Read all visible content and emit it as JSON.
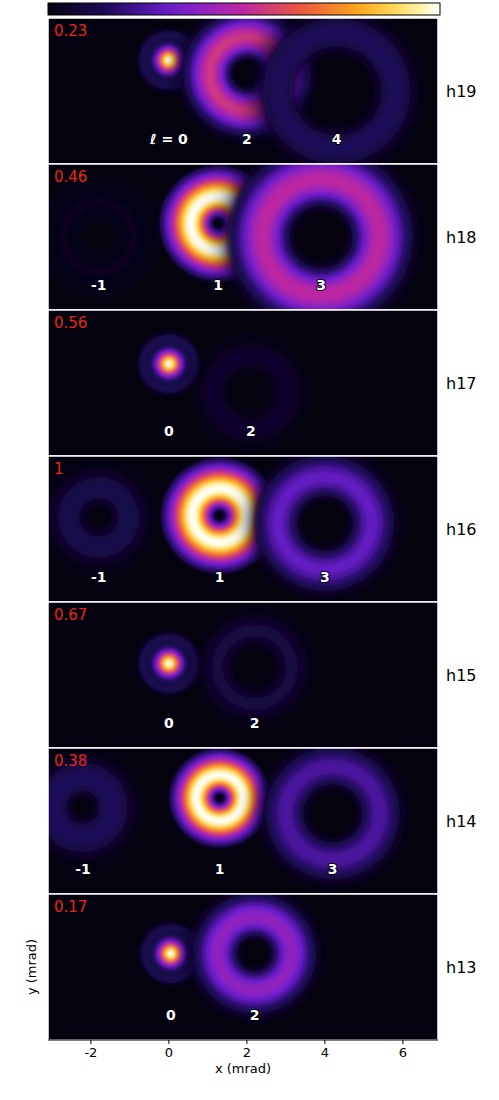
{
  "chart_data": {
    "type": "image_panels",
    "xlabel": "x (mrad)",
    "ylabel": "y (mrad)",
    "xlim": [
      -3.1,
      6.9
    ],
    "xticks": [
      -2,
      0,
      2,
      4,
      6
    ],
    "ylim": [
      -1.9,
      1.9
    ],
    "tick_labels": "x",
    "panels": [
      {
        "label": "h19",
        "value": 0.23,
        "modes": [
          {
            "l": 0,
            "label": "ℓ = 0",
            "x": 0,
            "y": 0.8,
            "radius": 0.45,
            "brightness": 1
          },
          {
            "l": 2,
            "x": 2.0,
            "y": 0.45,
            "radius": 0.95,
            "brightness": 0.55
          },
          {
            "l": 4,
            "x": 4.3,
            "y": 0,
            "radius": 1.5,
            "brightness": 0.15
          }
        ]
      },
      {
        "label": "h18",
        "value": 0.46,
        "modes": [
          {
            "l": -1,
            "x": -1.8,
            "y": 0,
            "radius": 0.9,
            "brightness": 0.05
          },
          {
            "l": 1,
            "x": 1.26,
            "y": 0.35,
            "radius": 0.7,
            "brightness": 1
          },
          {
            "l": 3,
            "x": 3.9,
            "y": 0,
            "radius": 1.5,
            "brightness": 0.5
          }
        ]
      },
      {
        "label": "h17",
        "value": 0.56,
        "modes": [
          {
            "l": 0,
            "x": 0,
            "y": 0.5,
            "radius": 0.45,
            "brightness": 1
          },
          {
            "l": 2,
            "x": 2.1,
            "y": -0.25,
            "radius": 0.95,
            "brightness": 0.08
          }
        ]
      },
      {
        "label": "h16",
        "value": 1,
        "modes": [
          {
            "l": -1,
            "x": -1.8,
            "y": 0.3,
            "radius": 0.75,
            "brightness": 0.12
          },
          {
            "l": 1,
            "x": 1.3,
            "y": 0.35,
            "radius": 0.7,
            "brightness": 1
          },
          {
            "l": 3,
            "x": 4.0,
            "y": 0.15,
            "radius": 1.2,
            "brightness": 0.3
          }
        ]
      },
      {
        "label": "h15",
        "value": 0.67,
        "modes": [
          {
            "l": 0,
            "x": 0,
            "y": 0.3,
            "radius": 0.45,
            "brightness": 1
          },
          {
            "l": 2,
            "x": 2.2,
            "y": 0.2,
            "radius": 0.95,
            "brightness": 0.1
          }
        ]
      },
      {
        "label": "h14",
        "value": 0.38,
        "modes": [
          {
            "l": -1,
            "x": -2.2,
            "y": 0.35,
            "radius": 0.75,
            "brightness": 0.15
          },
          {
            "l": 1,
            "x": 1.3,
            "y": 0.6,
            "radius": 0.6,
            "brightness": 1
          },
          {
            "l": 3,
            "x": 4.2,
            "y": 0.2,
            "radius": 1.2,
            "brightness": 0.25
          }
        ]
      },
      {
        "label": "h13",
        "value": 0.17,
        "modes": [
          {
            "l": 0,
            "x": 0.05,
            "y": 0.35,
            "radius": 0.45,
            "brightness": 1
          },
          {
            "l": 2,
            "x": 2.2,
            "y": 0.35,
            "radius": 0.95,
            "brightness": 0.4
          }
        ]
      }
    ]
  }
}
